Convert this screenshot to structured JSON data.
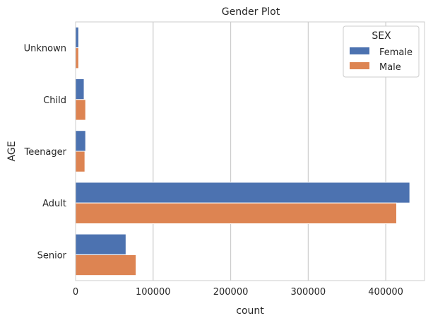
{
  "chart_data": {
    "type": "bar",
    "orientation": "horizontal",
    "title": "Gender Plot",
    "xlabel": "count",
    "ylabel": "AGE",
    "categories": [
      "Unknown",
      "Child",
      "Teenager",
      "Adult",
      "Senior"
    ],
    "series": [
      {
        "name": "Female",
        "color": "#4c72b0",
        "values": [
          4000,
          11000,
          13000,
          431000,
          65000
        ]
      },
      {
        "name": "Male",
        "color": "#dd8452",
        "values": [
          4000,
          13000,
          12000,
          414000,
          78000
        ]
      }
    ],
    "xlim": [
      0,
      450000
    ],
    "xticks": [
      0,
      100000,
      200000,
      300000,
      400000
    ],
    "grid": true,
    "legend": {
      "title": "SEX",
      "placement": "top-right"
    }
  }
}
